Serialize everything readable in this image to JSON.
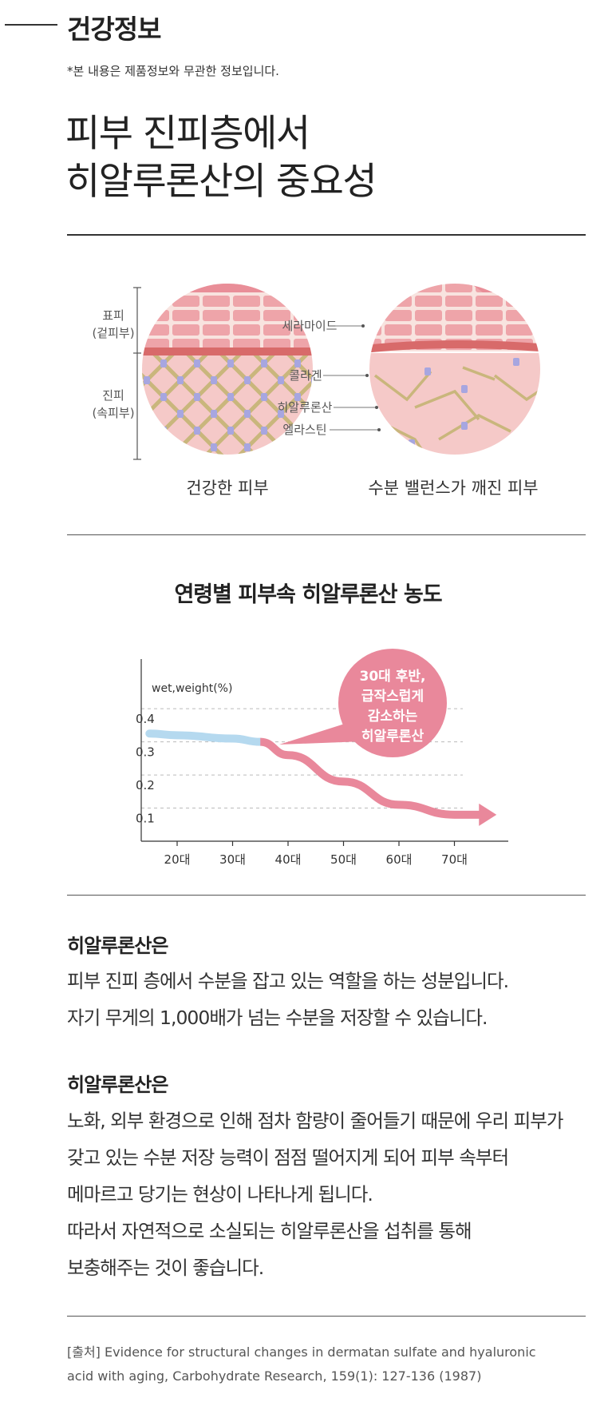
{
  "header": {
    "section_title": "건강정보",
    "disclaimer": "*본 내용은 제품정보와 무관한 정보입니다."
  },
  "main_title": {
    "line1": "피부 진피층에서",
    "line2": "히알루론산의 중요성"
  },
  "skin_diagram": {
    "epidermis_label": "표피",
    "epidermis_sub": "(겉피부)",
    "dermis_label": "진피",
    "dermis_sub": "(속피부)",
    "ceramide_label": "세라마이드",
    "collagen_label": "콜라겐",
    "hyaluronic_label": "히알루론산",
    "elastin_label": "엘라스틴",
    "healthy_caption": "건강한 피부",
    "broken_caption": "수분 밸런스가 깨진 피부"
  },
  "chart_data": {
    "type": "line",
    "title": "연령별 피부속 히알루론산 농도",
    "ylabel": "wet,weight(%)",
    "xlabel": "",
    "categories": [
      "20대",
      "30대",
      "40대",
      "50대",
      "60대",
      "70대"
    ],
    "x": [
      15,
      20,
      30,
      35,
      40,
      50,
      60,
      70,
      75
    ],
    "y": [
      0.325,
      0.32,
      0.31,
      0.3,
      0.26,
      0.18,
      0.11,
      0.08,
      0.08
    ],
    "yticks": [
      "0.1",
      "0.2",
      "0.3",
      "0.4"
    ],
    "ylim": [
      0,
      0.55
    ],
    "callout_lines": [
      "30대 후반,",
      "급작스럽게",
      "감소하는",
      "히알루론산"
    ],
    "colors": {
      "stable": "#b5d9ef",
      "decline": "#e9889b",
      "callout": "#e9889b"
    }
  },
  "paragraph1": {
    "heading": "히알루론산은",
    "lines": [
      "피부 진피 층에서 수분을 잡고 있는 역할을 하는 성분입니다.",
      "자기 무게의 1,000배가 넘는 수분을 저장할 수 있습니다."
    ]
  },
  "paragraph2": {
    "heading": "히알루론산은",
    "lines": [
      "노화, 외부 환경으로 인해 점차 함량이 줄어들기 때문에 우리 피부가",
      "갖고 있는 수분 저장 능력이 점점 떨어지게 되어 피부 속부터",
      "메마르고 당기는 현상이 나타나게 됩니다.",
      "따라서 자연적으로 소실되는 히알루론산을 섭취를 통해",
      "보충해주는 것이 좋습니다."
    ]
  },
  "source": {
    "line1": "[출처] Evidence for structural changes in dermatan sulfate and hyaluronic",
    "line2": "acid with aging, Carbohydrate Research, 159(1): 127-136 (1987)"
  }
}
